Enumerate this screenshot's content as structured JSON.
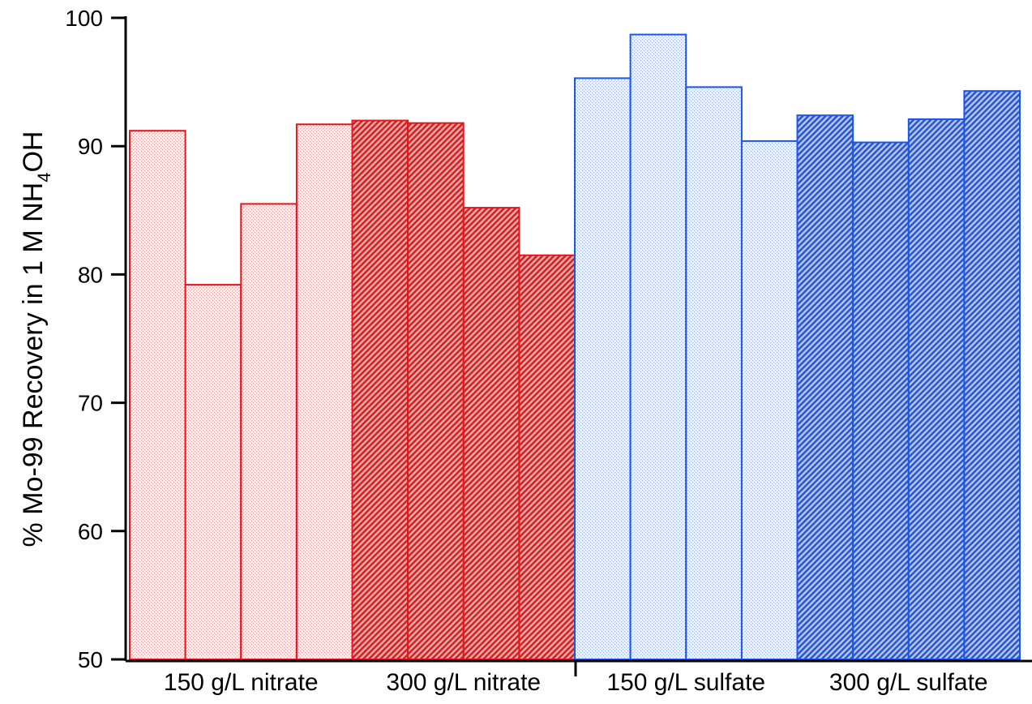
{
  "chart_data": {
    "type": "bar",
    "ylabel": "% Mo-99 Recovery in 1 M NH4OH",
    "ylabel_parts": {
      "main": "% Mo-99 Recovery in 1 M NH",
      "sub": "4",
      "tail": "OH"
    },
    "ylim": [
      50,
      100
    ],
    "yticks": [
      50,
      60,
      70,
      80,
      90,
      100
    ],
    "grid": false,
    "categories": [
      "150 g/L nitrate",
      "300 g/L nitrate",
      "150 g/L sulfate",
      "300 g/L sulfate"
    ],
    "series": [
      {
        "group": "150 g/L nitrate",
        "values": [
          91.2,
          79.2,
          85.5,
          91.7
        ],
        "color": "#e8141b",
        "fill": "light-dotted"
      },
      {
        "group": "300 g/L nitrate",
        "values": [
          92.0,
          91.8,
          85.2,
          81.5
        ],
        "color": "#e8141b",
        "fill": "dense-hatched"
      },
      {
        "group": "150 g/L sulfate",
        "values": [
          95.3,
          98.7,
          94.6,
          90.4
        ],
        "color": "#1a56e8",
        "fill": "light-dotted"
      },
      {
        "group": "300 g/L sulfate",
        "values": [
          92.4,
          90.3,
          92.1,
          94.3
        ],
        "color": "#1a56e8",
        "fill": "dense-hatched"
      }
    ]
  }
}
